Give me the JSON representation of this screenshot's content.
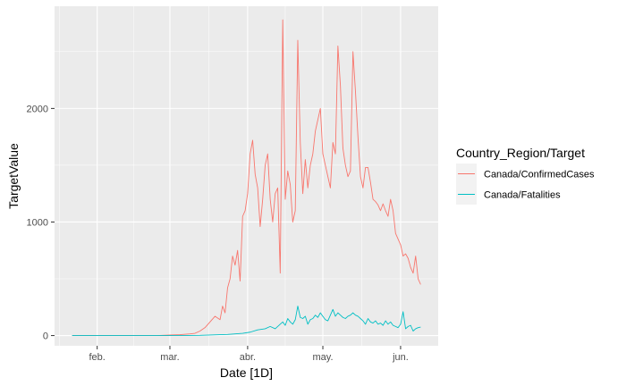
{
  "chart_data": {
    "type": "line",
    "xlabel": "Date [1D]",
    "ylabel": "TargetValue",
    "xlim": [
      "2020-01-15",
      "2020-06-16"
    ],
    "ylim": [
      -90,
      2900
    ],
    "grid": true,
    "legend_position": "right",
    "legend_title": "Country_Region/Target",
    "x_ticks": [
      {
        "date": "2020-02-01",
        "label": "feb."
      },
      {
        "date": "2020-03-01",
        "label": "mar."
      },
      {
        "date": "2020-04-01",
        "label": "abr."
      },
      {
        "date": "2020-05-01",
        "label": "may."
      },
      {
        "date": "2020-06-01",
        "label": "jun."
      }
    ],
    "y_ticks": [
      0,
      1000,
      2000
    ],
    "series": [
      {
        "name": "Canada/ConfirmedCases",
        "color": "#F8766D",
        "points": [
          [
            "2020-01-22",
            0
          ],
          [
            "2020-02-01",
            0
          ],
          [
            "2020-02-06",
            0
          ],
          [
            "2020-02-15",
            0
          ],
          [
            "2020-02-25",
            0
          ],
          [
            "2020-03-01",
            5
          ],
          [
            "2020-03-05",
            8
          ],
          [
            "2020-03-09",
            15
          ],
          [
            "2020-03-11",
            20
          ],
          [
            "2020-03-13",
            40
          ],
          [
            "2020-03-15",
            70
          ],
          [
            "2020-03-17",
            120
          ],
          [
            "2020-03-19",
            170
          ],
          [
            "2020-03-21",
            140
          ],
          [
            "2020-03-22",
            260
          ],
          [
            "2020-03-23",
            200
          ],
          [
            "2020-03-24",
            420
          ],
          [
            "2020-03-25",
            500
          ],
          [
            "2020-03-26",
            700
          ],
          [
            "2020-03-27",
            620
          ],
          [
            "2020-03-28",
            750
          ],
          [
            "2020-03-29",
            480
          ],
          [
            "2020-03-30",
            1050
          ],
          [
            "2020-03-31",
            1100
          ],
          [
            "2020-04-01",
            1250
          ],
          [
            "2020-04-02",
            1600
          ],
          [
            "2020-04-03",
            1720
          ],
          [
            "2020-04-04",
            1420
          ],
          [
            "2020-04-05",
            1300
          ],
          [
            "2020-04-06",
            960
          ],
          [
            "2020-04-07",
            1200
          ],
          [
            "2020-04-08",
            1500
          ],
          [
            "2020-04-09",
            1600
          ],
          [
            "2020-04-10",
            1200
          ],
          [
            "2020-04-11",
            1000
          ],
          [
            "2020-04-12",
            1250
          ],
          [
            "2020-04-13",
            1300
          ],
          [
            "2020-04-14",
            550
          ],
          [
            "2020-04-15",
            2780
          ],
          [
            "2020-04-16",
            1200
          ],
          [
            "2020-04-17",
            1450
          ],
          [
            "2020-04-18",
            1330
          ],
          [
            "2020-04-19",
            1000
          ],
          [
            "2020-04-20",
            1100
          ],
          [
            "2020-04-21",
            2600
          ],
          [
            "2020-04-22",
            1700
          ],
          [
            "2020-04-23",
            1250
          ],
          [
            "2020-04-24",
            1550
          ],
          [
            "2020-04-25",
            1300
          ],
          [
            "2020-04-26",
            1500
          ],
          [
            "2020-04-27",
            1600
          ],
          [
            "2020-04-28",
            1800
          ],
          [
            "2020-04-29",
            1900
          ],
          [
            "2020-04-30",
            2000
          ],
          [
            "2020-05-01",
            1600
          ],
          [
            "2020-05-02",
            1500
          ],
          [
            "2020-05-03",
            1400
          ],
          [
            "2020-05-04",
            1300
          ],
          [
            "2020-05-05",
            1700
          ],
          [
            "2020-05-06",
            1600
          ],
          [
            "2020-05-07",
            2550
          ],
          [
            "2020-05-08",
            2200
          ],
          [
            "2020-05-09",
            1650
          ],
          [
            "2020-05-10",
            1500
          ],
          [
            "2020-05-11",
            1400
          ],
          [
            "2020-05-12",
            1450
          ],
          [
            "2020-05-13",
            2500
          ],
          [
            "2020-05-14",
            2150
          ],
          [
            "2020-05-15",
            1750
          ],
          [
            "2020-05-16",
            1400
          ],
          [
            "2020-05-17",
            1300
          ],
          [
            "2020-05-18",
            1480
          ],
          [
            "2020-05-19",
            1480
          ],
          [
            "2020-05-20",
            1350
          ],
          [
            "2020-05-21",
            1200
          ],
          [
            "2020-05-22",
            1180
          ],
          [
            "2020-05-23",
            1150
          ],
          [
            "2020-05-24",
            1100
          ],
          [
            "2020-05-25",
            1160
          ],
          [
            "2020-05-26",
            1100
          ],
          [
            "2020-05-27",
            1050
          ],
          [
            "2020-05-28",
            1200
          ],
          [
            "2020-05-29",
            1100
          ],
          [
            "2020-05-30",
            900
          ],
          [
            "2020-05-31",
            850
          ],
          [
            "2020-06-01",
            800
          ],
          [
            "2020-06-02",
            700
          ],
          [
            "2020-06-03",
            720
          ],
          [
            "2020-06-04",
            680
          ],
          [
            "2020-06-05",
            600
          ],
          [
            "2020-06-06",
            550
          ],
          [
            "2020-06-07",
            700
          ],
          [
            "2020-06-08",
            500
          ],
          [
            "2020-06-09",
            450
          ]
        ]
      },
      {
        "name": "Canada/Fatalities",
        "color": "#00BFC4",
        "points": [
          [
            "2020-01-22",
            0
          ],
          [
            "2020-02-15",
            0
          ],
          [
            "2020-03-01",
            0
          ],
          [
            "2020-03-09",
            1
          ],
          [
            "2020-03-13",
            2
          ],
          [
            "2020-03-17",
            5
          ],
          [
            "2020-03-21",
            8
          ],
          [
            "2020-03-24",
            10
          ],
          [
            "2020-03-27",
            15
          ],
          [
            "2020-03-30",
            20
          ],
          [
            "2020-04-02",
            30
          ],
          [
            "2020-04-05",
            50
          ],
          [
            "2020-04-08",
            60
          ],
          [
            "2020-04-10",
            80
          ],
          [
            "2020-04-12",
            60
          ],
          [
            "2020-04-14",
            100
          ],
          [
            "2020-04-15",
            120
          ],
          [
            "2020-04-16",
            90
          ],
          [
            "2020-04-17",
            150
          ],
          [
            "2020-04-18",
            120
          ],
          [
            "2020-04-19",
            100
          ],
          [
            "2020-04-20",
            140
          ],
          [
            "2020-04-21",
            260
          ],
          [
            "2020-04-22",
            160
          ],
          [
            "2020-04-23",
            150
          ],
          [
            "2020-04-24",
            170
          ],
          [
            "2020-04-25",
            100
          ],
          [
            "2020-04-26",
            140
          ],
          [
            "2020-04-27",
            150
          ],
          [
            "2020-04-28",
            180
          ],
          [
            "2020-04-29",
            160
          ],
          [
            "2020-04-30",
            200
          ],
          [
            "2020-05-01",
            170
          ],
          [
            "2020-05-02",
            140
          ],
          [
            "2020-05-03",
            130
          ],
          [
            "2020-05-04",
            180
          ],
          [
            "2020-05-05",
            230
          ],
          [
            "2020-05-06",
            170
          ],
          [
            "2020-05-07",
            200
          ],
          [
            "2020-05-08",
            180
          ],
          [
            "2020-05-09",
            160
          ],
          [
            "2020-05-10",
            150
          ],
          [
            "2020-05-11",
            170
          ],
          [
            "2020-05-12",
            180
          ],
          [
            "2020-05-13",
            200
          ],
          [
            "2020-05-14",
            180
          ],
          [
            "2020-05-15",
            170
          ],
          [
            "2020-05-16",
            150
          ],
          [
            "2020-05-17",
            130
          ],
          [
            "2020-05-18",
            100
          ],
          [
            "2020-05-19",
            150
          ],
          [
            "2020-05-20",
            120
          ],
          [
            "2020-05-21",
            110
          ],
          [
            "2020-05-22",
            130
          ],
          [
            "2020-05-23",
            100
          ],
          [
            "2020-05-24",
            110
          ],
          [
            "2020-05-25",
            90
          ],
          [
            "2020-05-26",
            130
          ],
          [
            "2020-05-27",
            100
          ],
          [
            "2020-05-28",
            120
          ],
          [
            "2020-05-29",
            90
          ],
          [
            "2020-05-30",
            80
          ],
          [
            "2020-05-31",
            70
          ],
          [
            "2020-06-01",
            100
          ],
          [
            "2020-06-02",
            210
          ],
          [
            "2020-06-03",
            60
          ],
          [
            "2020-06-04",
            80
          ],
          [
            "2020-06-05",
            90
          ],
          [
            "2020-06-06",
            40
          ],
          [
            "2020-06-07",
            60
          ],
          [
            "2020-06-08",
            70
          ],
          [
            "2020-06-09",
            75
          ]
        ]
      }
    ]
  }
}
